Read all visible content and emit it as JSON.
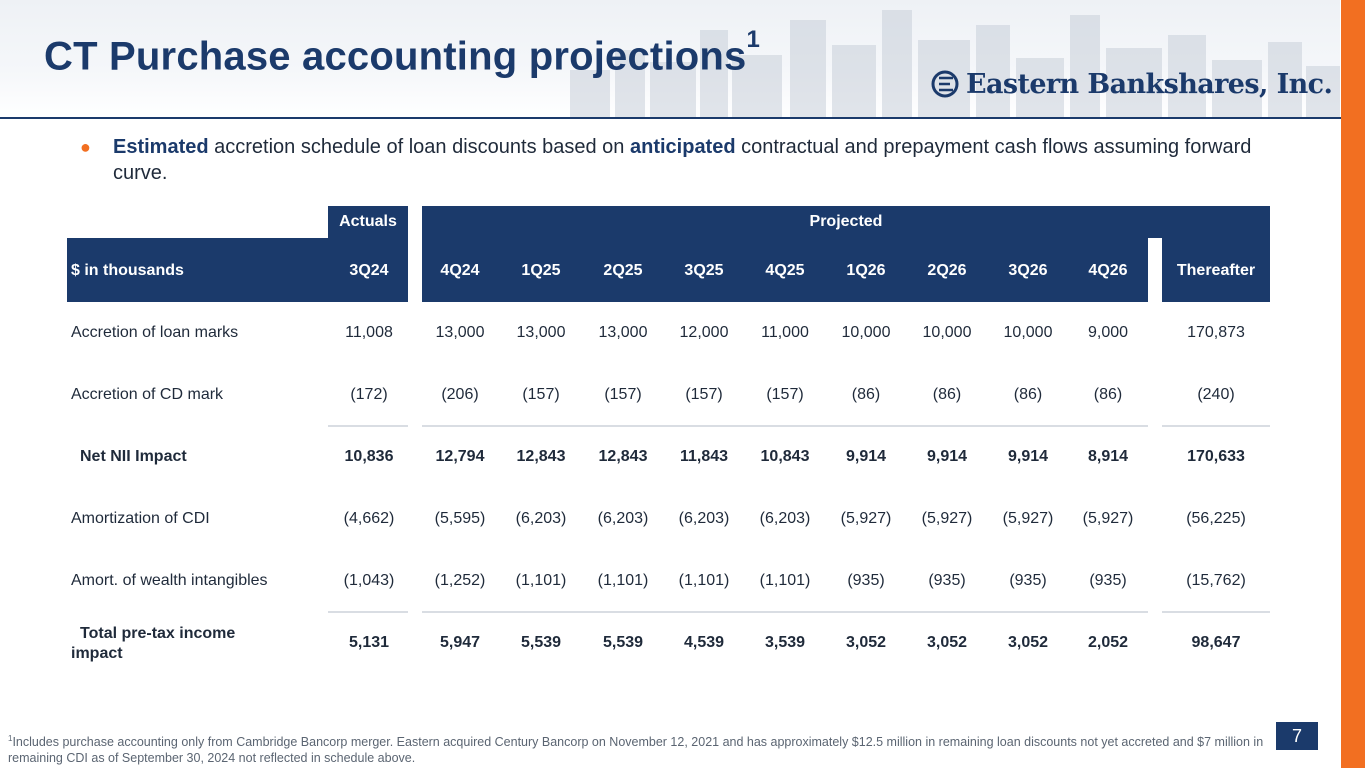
{
  "title": "CT Purchase accounting projections",
  "title_sup": "1",
  "logo_text": "Eastern Bankshares, Inc.",
  "bullet": {
    "w1": "Estimated",
    "t1": " accretion schedule of loan discounts based on ",
    "w2": "anticipated",
    "t2": " contractual and prepayment cash flows assuming forward curve."
  },
  "table": {
    "group_actuals": "Actuals",
    "group_projected": "Projected",
    "label_header": "$ in thousands",
    "columns": [
      "3Q24",
      "4Q24",
      "1Q25",
      "2Q25",
      "3Q25",
      "4Q25",
      "1Q26",
      "2Q26",
      "3Q26",
      "4Q26",
      "Thereafter"
    ],
    "rows": [
      {
        "label": "Accretion of loan marks",
        "values": [
          "11,008",
          "13,000",
          "13,000",
          "13,000",
          "12,000",
          "11,000",
          "10,000",
          "10,000",
          "10,000",
          "9,000",
          "170,873"
        ]
      },
      {
        "label": "Accretion of CD mark",
        "values": [
          "(172)",
          "(206)",
          "(157)",
          "(157)",
          "(157)",
          "(157)",
          "(86)",
          "(86)",
          "(86)",
          "(86)",
          "(240)"
        ]
      },
      {
        "label": "Net NII Impact",
        "values": [
          "10,836",
          "12,794",
          "12,843",
          "12,843",
          "11,843",
          "10,843",
          "9,914",
          "9,914",
          "9,914",
          "8,914",
          "170,633"
        ]
      },
      {
        "label": "Amortization of CDI",
        "values": [
          "(4,662)",
          "(5,595)",
          "(6,203)",
          "(6,203)",
          "(6,203)",
          "(6,203)",
          "(5,927)",
          "(5,927)",
          "(5,927)",
          "(5,927)",
          "(56,225)"
        ]
      },
      {
        "label": "Amort. of wealth intangibles",
        "values": [
          "(1,043)",
          "(1,252)",
          "(1,101)",
          "(1,101)",
          "(1,101)",
          "(1,101)",
          "(935)",
          "(935)",
          "(935)",
          "(935)",
          "(15,762)"
        ]
      },
      {
        "label": "Total pre-tax income impact",
        "label_line1": "Total pre-tax income",
        "label_line2": "impact",
        "values": [
          "5,131",
          "5,947",
          "5,539",
          "5,539",
          "4,539",
          "3,539",
          "3,052",
          "3,052",
          "3,052",
          "2,052",
          "98,647"
        ]
      }
    ]
  },
  "footnote_sup": "1",
  "footnote": "Includes purchase accounting only from Cambridge Bancorp merger.  Eastern acquired Century Bancorp on November 12, 2021 and has approximately $12.5 million in remaining loan discounts not yet accreted and $7 million in remaining CDI as of September 30, 2024 not reflected in schedule above.",
  "page_number": "7",
  "colors": {
    "navy": "#1b3a6b",
    "orange": "#f26f21"
  }
}
